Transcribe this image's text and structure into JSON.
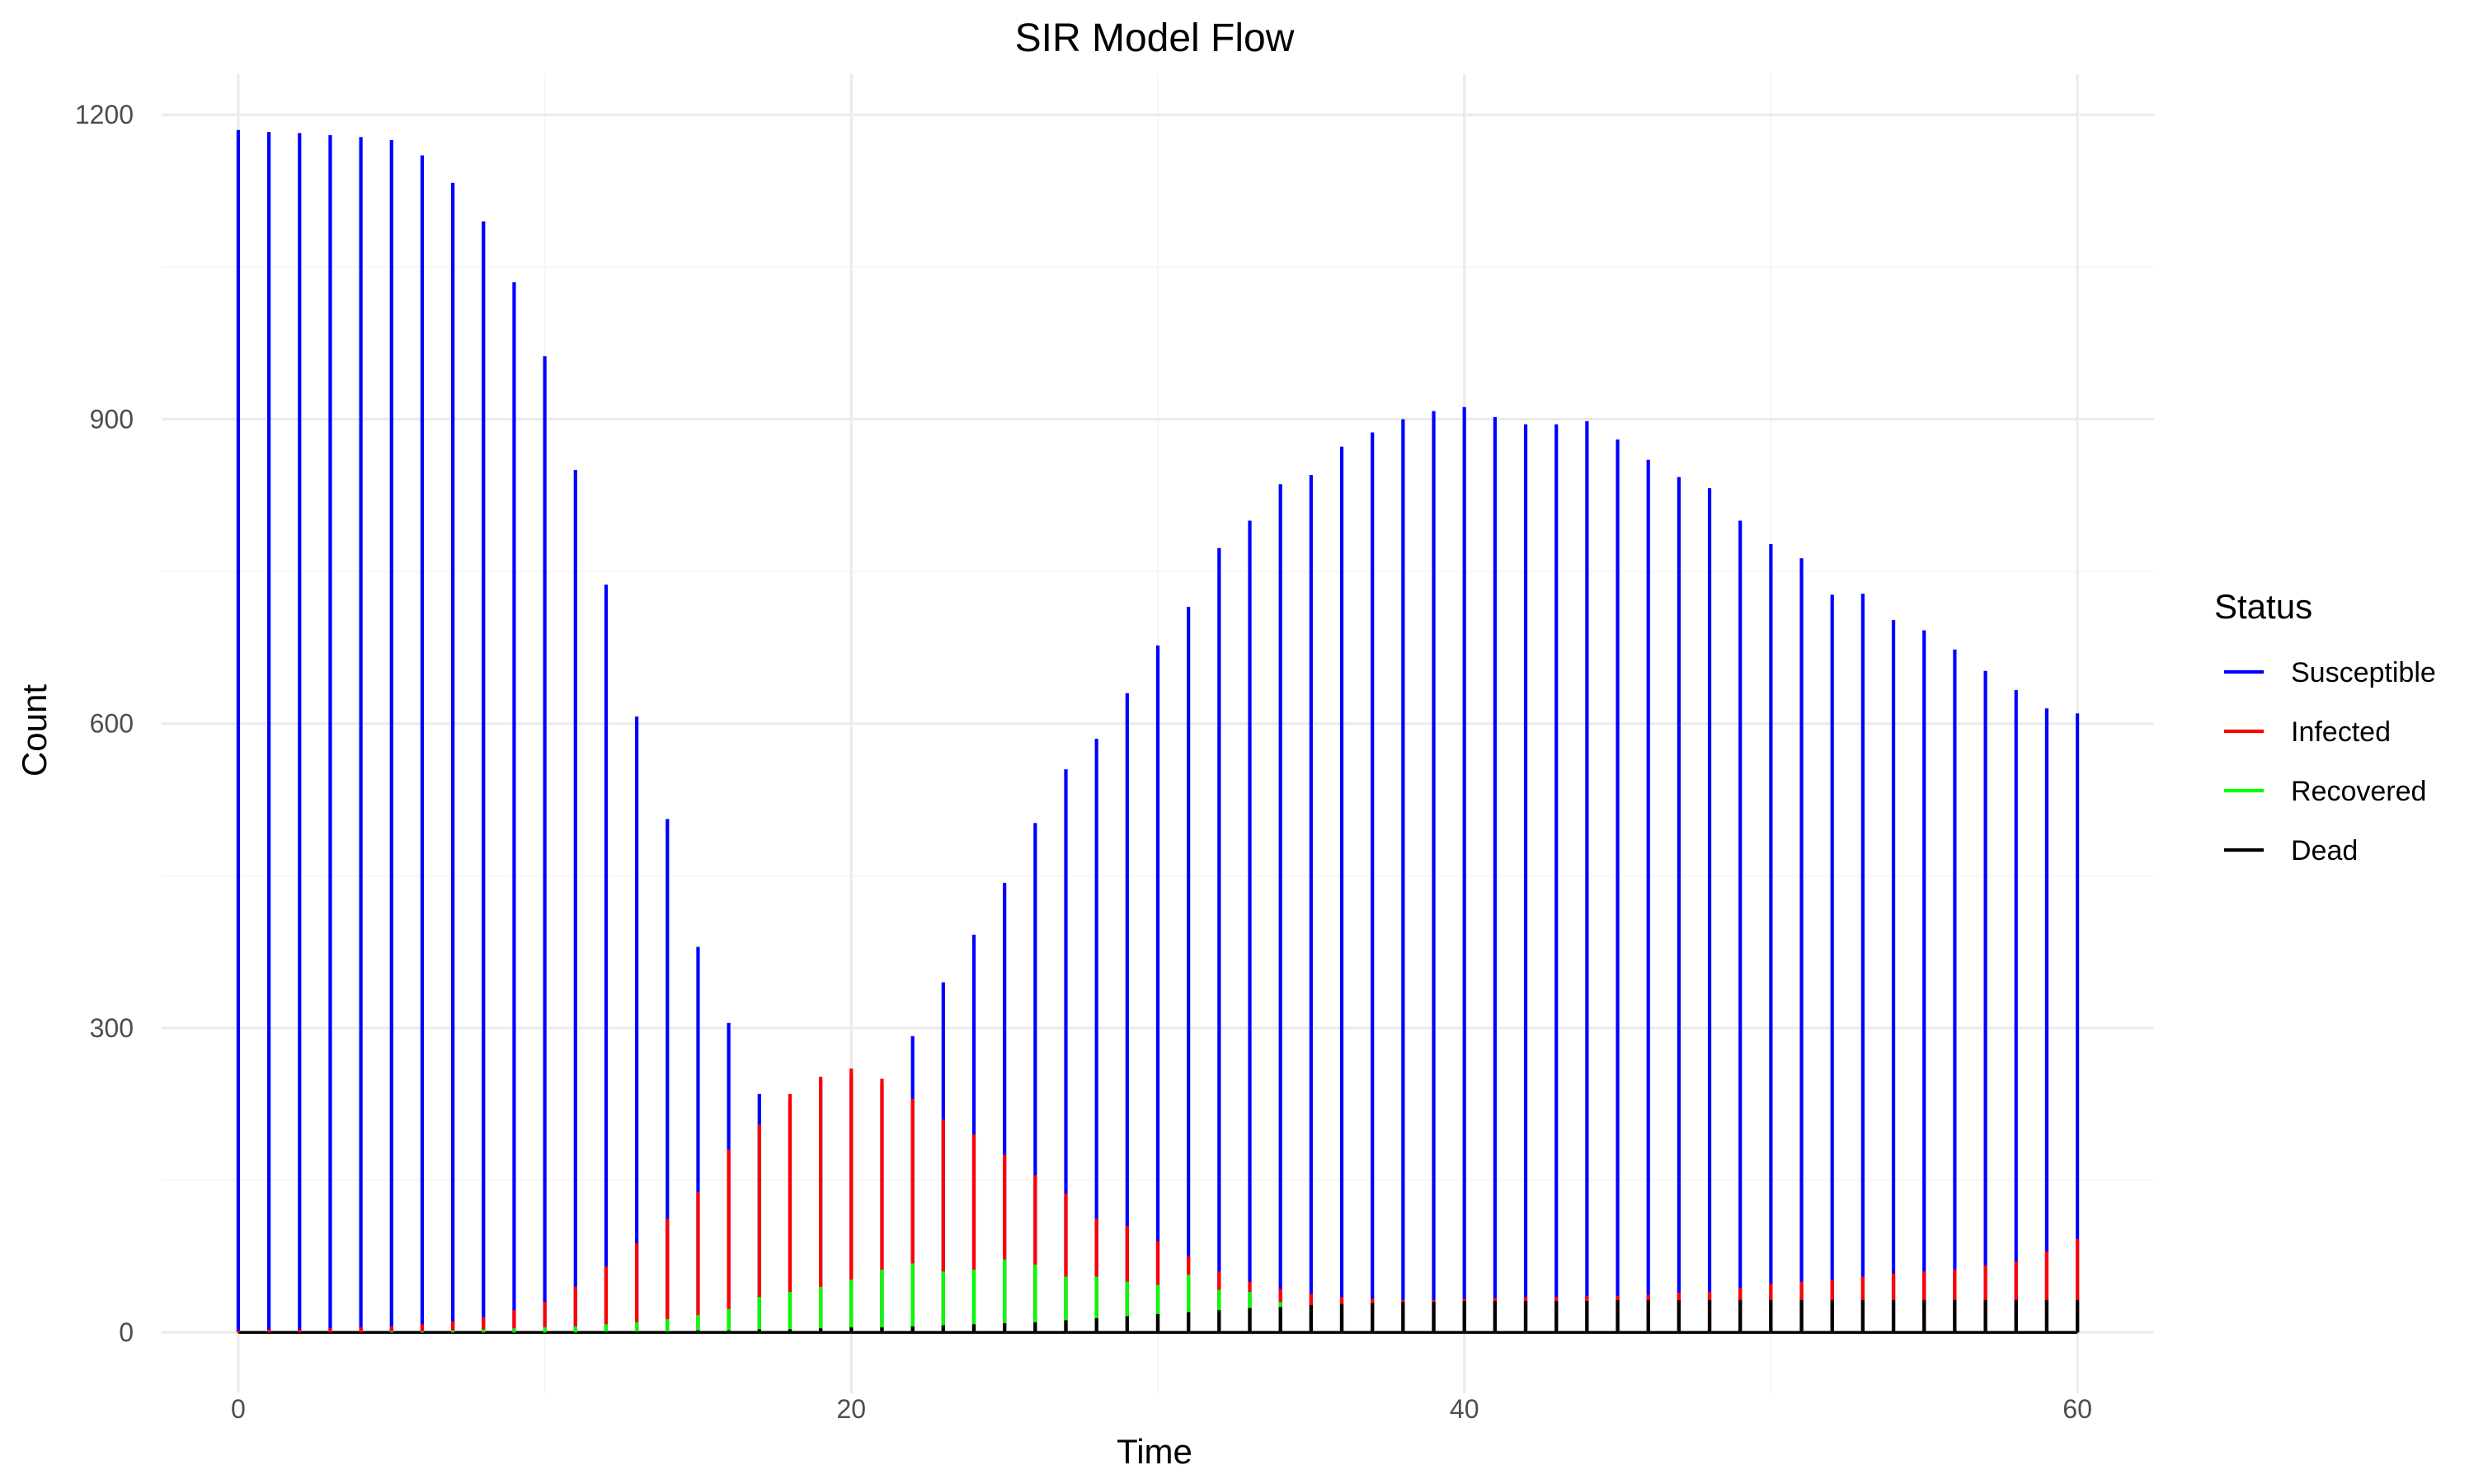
{
  "chart_data": {
    "type": "line",
    "subtype": "vertical-segments (linerange) per time step, overlaid by status",
    "title": "SIR Model Flow",
    "xlabel": "Time",
    "ylabel": "Count",
    "xlim": [
      -2.5,
      62.5
    ],
    "ylim": [
      -60,
      1240
    ],
    "x_ticks": [
      0,
      20,
      40,
      60
    ],
    "y_ticks": [
      0,
      300,
      600,
      900,
      1200
    ],
    "grid": true,
    "legend": {
      "title": "Status",
      "position": "right"
    },
    "x": [
      0,
      1,
      2,
      3,
      4,
      5,
      6,
      7,
      8,
      9,
      10,
      11,
      12,
      13,
      14,
      15,
      16,
      17,
      18,
      19,
      20,
      21,
      22,
      23,
      24,
      25,
      26,
      27,
      28,
      29,
      30,
      31,
      32,
      33,
      34,
      35,
      36,
      37,
      38,
      39,
      40,
      41,
      42,
      43,
      44,
      45,
      46,
      47,
      48,
      49,
      50,
      51,
      52,
      53,
      54,
      55,
      56,
      57,
      58,
      59,
      60
    ],
    "series": [
      {
        "name": "Susceptible",
        "color": "#0000ff",
        "values": [
          1185,
          1183,
          1182,
          1180,
          1178,
          1175,
          1160,
          1133,
          1095,
          1035,
          962,
          850,
          737,
          607,
          506,
          380,
          305,
          235,
          230,
          248,
          255,
          245,
          292,
          345,
          392,
          443,
          502,
          555,
          585,
          630,
          677,
          715,
          773,
          800,
          836,
          845,
          873,
          887,
          900,
          908,
          912,
          902,
          895,
          895,
          898,
          880,
          860,
          843,
          832,
          800,
          777,
          763,
          727,
          728,
          702,
          692,
          673,
          652,
          633,
          615,
          610
        ]
      },
      {
        "name": "Infected",
        "color": "#ff0000",
        "values": [
          2,
          3,
          3,
          4,
          5,
          6,
          8,
          11,
          15,
          22,
          30,
          45,
          65,
          88,
          112,
          138,
          180,
          205,
          235,
          252,
          260,
          250,
          230,
          210,
          195,
          175,
          155,
          137,
          112,
          105,
          90,
          75,
          60,
          50,
          43,
          38,
          35,
          33,
          32,
          32,
          33,
          34,
          35,
          35,
          36,
          36,
          37,
          39,
          40,
          44,
          48,
          50,
          52,
          55,
          58,
          60,
          62,
          66,
          70,
          80,
          92
        ]
      },
      {
        "name": "Recovered",
        "color": "#00ff00",
        "values": [
          0,
          0,
          0,
          0,
          0,
          1,
          1,
          2,
          3,
          4,
          5,
          6,
          8,
          10,
          13,
          17,
          23,
          35,
          40,
          45,
          52,
          62,
          68,
          60,
          62,
          72,
          67,
          55,
          55,
          50,
          47,
          57,
          42,
          40,
          30,
          25,
          22,
          18,
          15,
          12,
          10,
          8,
          7,
          6,
          5,
          5,
          5,
          5,
          5,
          5,
          5,
          5,
          5,
          5,
          5,
          5,
          5,
          5,
          5,
          5,
          5
        ]
      },
      {
        "name": "Dead",
        "color": "#000000",
        "values": [
          0,
          0,
          0,
          0,
          0,
          0,
          0,
          0,
          0,
          0,
          0,
          0,
          1,
          1,
          1,
          2,
          2,
          3,
          3,
          4,
          5,
          5,
          6,
          7,
          8,
          9,
          10,
          12,
          14,
          16,
          18,
          20,
          22,
          24,
          25,
          27,
          28,
          29,
          30,
          30,
          31,
          31,
          31,
          31,
          31,
          32,
          32,
          32,
          32,
          32,
          32,
          32,
          32,
          32,
          32,
          32,
          32,
          32,
          32,
          32,
          32
        ]
      }
    ]
  }
}
